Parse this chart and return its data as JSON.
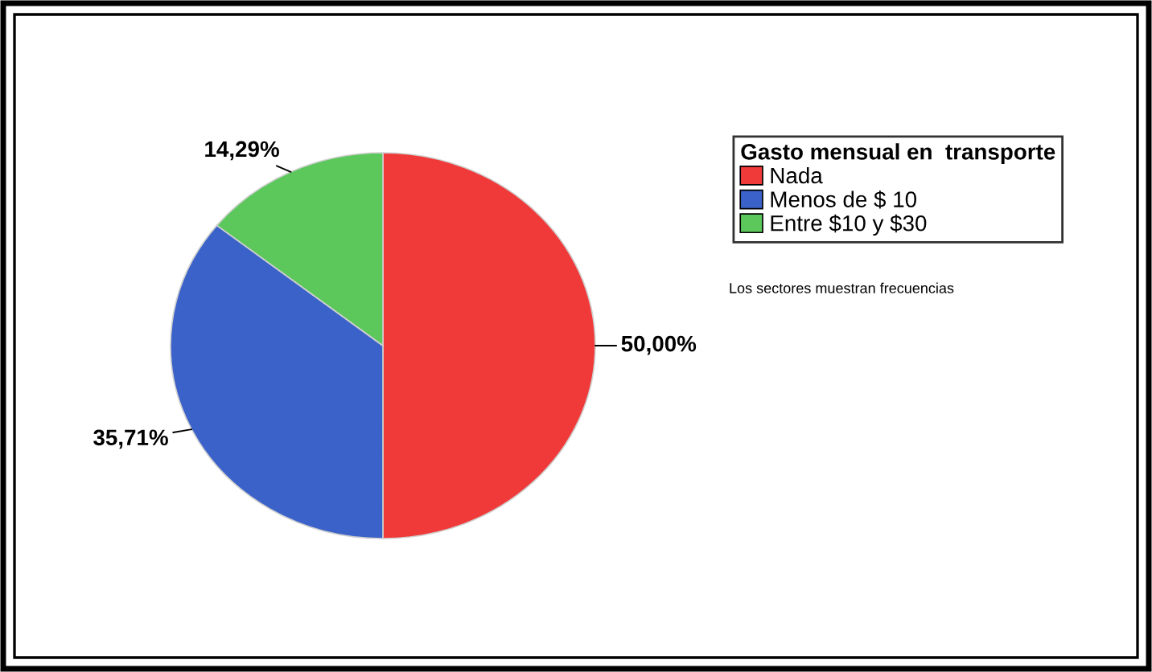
{
  "chart_data": {
    "type": "pie",
    "legend_title": "Gasto mensual en  transporte",
    "categories": [
      "Nada",
      "Menos de $ 10",
      "Entre $10 y $30"
    ],
    "values": [
      50.0,
      35.71,
      14.29
    ],
    "colors": [
      "#f03a3a",
      "#3b62c9",
      "#5cc85c"
    ],
    "value_labels": [
      "50,00%",
      "35,71%",
      "14,29%"
    ],
    "legend": "top right",
    "annotations": [
      "Los sectores muestran frecuencias"
    ]
  }
}
